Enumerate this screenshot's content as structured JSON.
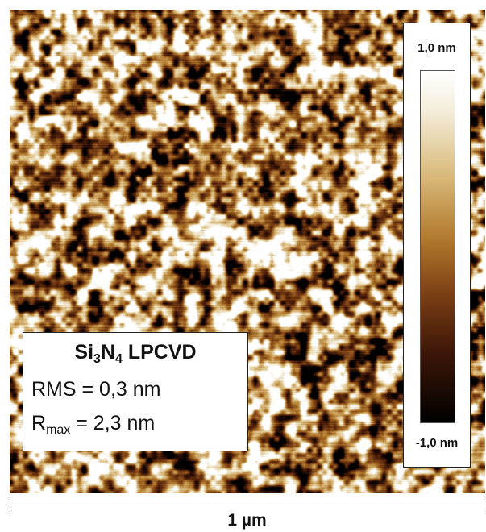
{
  "sample": {
    "formula_parts": [
      "Si",
      "3",
      "N",
      "4"
    ],
    "process": "LPCVD",
    "rms_label": "RMS = 0,3 nm",
    "rmax_symbol": "R",
    "rmax_subscript": "max",
    "rmax_value": "= 2,3 nm"
  },
  "color_scale": {
    "max_label": "1,0 nm",
    "min_label": "-1,0 nm",
    "colors": [
      "#000000",
      "#3d1608",
      "#7a3e14",
      "#b0782c",
      "#d9b97a",
      "#f3ecd8",
      "#ffffff"
    ]
  },
  "scale_bar": {
    "label": "1 µm"
  },
  "image": {
    "type": "AFM height map",
    "palette": "copper/gold"
  }
}
